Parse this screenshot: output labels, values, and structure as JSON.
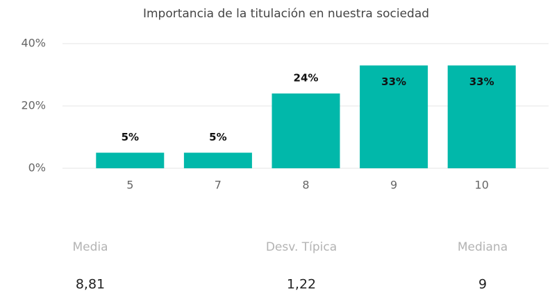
{
  "chart_data": {
    "type": "bar",
    "title": "Importancia de la titulación en nuestra sociedad",
    "categories": [
      "5",
      "7",
      "8",
      "9",
      "10"
    ],
    "values": [
      5,
      5,
      24,
      33,
      33
    ],
    "value_labels": [
      "5%",
      "5%",
      "24%",
      "33%",
      "33%"
    ],
    "color": "#01b8aa",
    "ylim": [
      0,
      40
    ],
    "yticks": [
      {
        "value": 0,
        "label": "0%"
      },
      {
        "value": 20,
        "label": "20%"
      },
      {
        "value": 40,
        "label": "40%"
      }
    ],
    "grid": true
  },
  "stats": [
    {
      "label": "Media",
      "value": "8,81"
    },
    {
      "label": "Desv. Típica",
      "value": "1,22"
    },
    {
      "label": "Mediana",
      "value": "9"
    }
  ]
}
